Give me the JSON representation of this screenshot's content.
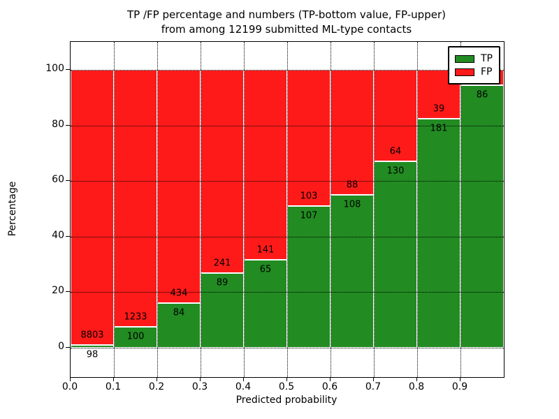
{
  "title": {
    "line1": "TP /FP percentage and numbers (TP-bottom value, FP-upper)",
    "line2": "from among 12199 submitted ML-type contacts"
  },
  "axes": {
    "xlabel": "Predicted probability",
    "ylabel": "Percentage",
    "x_ticks": [
      "0.0",
      "0.1",
      "0.2",
      "0.3",
      "0.4",
      "0.5",
      "0.6",
      "0.7",
      "0.8",
      "0.9"
    ],
    "y_ticks": [
      "0",
      "20",
      "40",
      "60",
      "80",
      "100"
    ],
    "y_tick_values": [
      0,
      20,
      40,
      60,
      80,
      100
    ]
  },
  "legend": {
    "items": [
      {
        "label": "TP",
        "color": "#228b22"
      },
      {
        "label": "FP",
        "color": "#ff1a1a"
      }
    ]
  },
  "colors": {
    "tp": "#228b22",
    "fp": "#ff1a1a",
    "grid": "#000000",
    "background": "#ffffff"
  },
  "chart_data": {
    "type": "bar",
    "stacked": true,
    "normalized_to_percent": true,
    "title": "TP /FP percentage and numbers (TP-bottom value, FP-upper) from among 12199 submitted ML-type contacts",
    "xlabel": "Predicted probability",
    "ylabel": "Percentage",
    "categories": [
      "0.0-0.1",
      "0.1-0.2",
      "0.2-0.3",
      "0.3-0.4",
      "0.4-0.5",
      "0.5-0.6",
      "0.6-0.7",
      "0.7-0.8",
      "0.8-0.9",
      "0.9-1.0"
    ],
    "series": [
      {
        "name": "TP",
        "counts": [
          98,
          100,
          84,
          89,
          65,
          107,
          108,
          130,
          181,
          86
        ]
      },
      {
        "name": "FP",
        "counts": [
          8803,
          1233,
          434,
          241,
          141,
          103,
          88,
          64,
          39,
          null
        ]
      }
    ],
    "tp_percent": [
      1.1,
      7.5,
      16.2,
      27.0,
      31.6,
      51.0,
      55.1,
      67.0,
      82.3,
      94.5
    ],
    "labels_tp": [
      "98",
      "100",
      "84",
      "89",
      "65",
      "107",
      "108",
      "130",
      "181",
      "86"
    ],
    "labels_fp": [
      "8803",
      "1233",
      "434",
      "241",
      "141",
      "103",
      "88",
      "64",
      "39",
      ""
    ],
    "total_contacts": 12199,
    "xlim": [
      0.0,
      1.0
    ],
    "ylim": [
      -10,
      110
    ],
    "grid": true,
    "legend_position": "upper right"
  }
}
